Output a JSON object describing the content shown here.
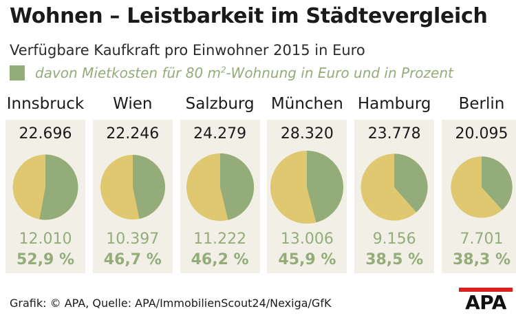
{
  "title": "Wohnen – Leistbarkeit im Städtevergleich",
  "subtitle": "Verfügbare Kaufkraft pro Einwohner 2015 in Euro",
  "legend": {
    "text": "davon Mietkosten für 80 m",
    "sup": "2",
    "text2": "-Wohnung in Euro und in Prozent"
  },
  "colors": {
    "rent": "#93ac79",
    "rest": "#dfc870",
    "panel": "#f1efe6",
    "rent_text": "#93ac79",
    "logo_red": "#d9201c"
  },
  "chart_data": {
    "type": "pie",
    "title": "Wohnen – Leistbarkeit im Städtevergleich",
    "subtitle": "Verfügbare Kaufkraft pro Einwohner 2015 in Euro",
    "series_label": "davon Mietkosten für 80 m²-Wohnung in Euro und in Prozent",
    "cities": [
      {
        "name": "Innsbruck",
        "kaufkraft": 22696,
        "kaufkraft_label": "22.696",
        "rent": 12010,
        "rent_label": "12.010",
        "pct": 52.9,
        "pct_label": "52,9 %"
      },
      {
        "name": "Wien",
        "kaufkraft": 22246,
        "kaufkraft_label": "22.246",
        "rent": 10397,
        "rent_label": "10.397",
        "pct": 46.7,
        "pct_label": "46,7 %"
      },
      {
        "name": "Salzburg",
        "kaufkraft": 24279,
        "kaufkraft_label": "24.279",
        "rent": 11222,
        "rent_label": "11.222",
        "pct": 46.2,
        "pct_label": "46,2 %"
      },
      {
        "name": "München",
        "kaufkraft": 28320,
        "kaufkraft_label": "28.320",
        "rent": 13006,
        "rent_label": "13.006",
        "pct": 45.9,
        "pct_label": "45,9 %"
      },
      {
        "name": "Hamburg",
        "kaufkraft": 23778,
        "kaufkraft_label": "23.778",
        "rent": 9156,
        "rent_label": "9.156",
        "pct": 38.5,
        "pct_label": "38,5 %"
      },
      {
        "name": "Berlin",
        "kaufkraft": 20095,
        "kaufkraft_label": "20.095",
        "rent": 7701,
        "rent_label": "7.701",
        "pct": 38.3,
        "pct_label": "38,3 %"
      }
    ]
  },
  "source": "Grafik: © APA, Quelle: APA/ImmobilienScout24/Nexiga/GfK",
  "logo": "APA"
}
